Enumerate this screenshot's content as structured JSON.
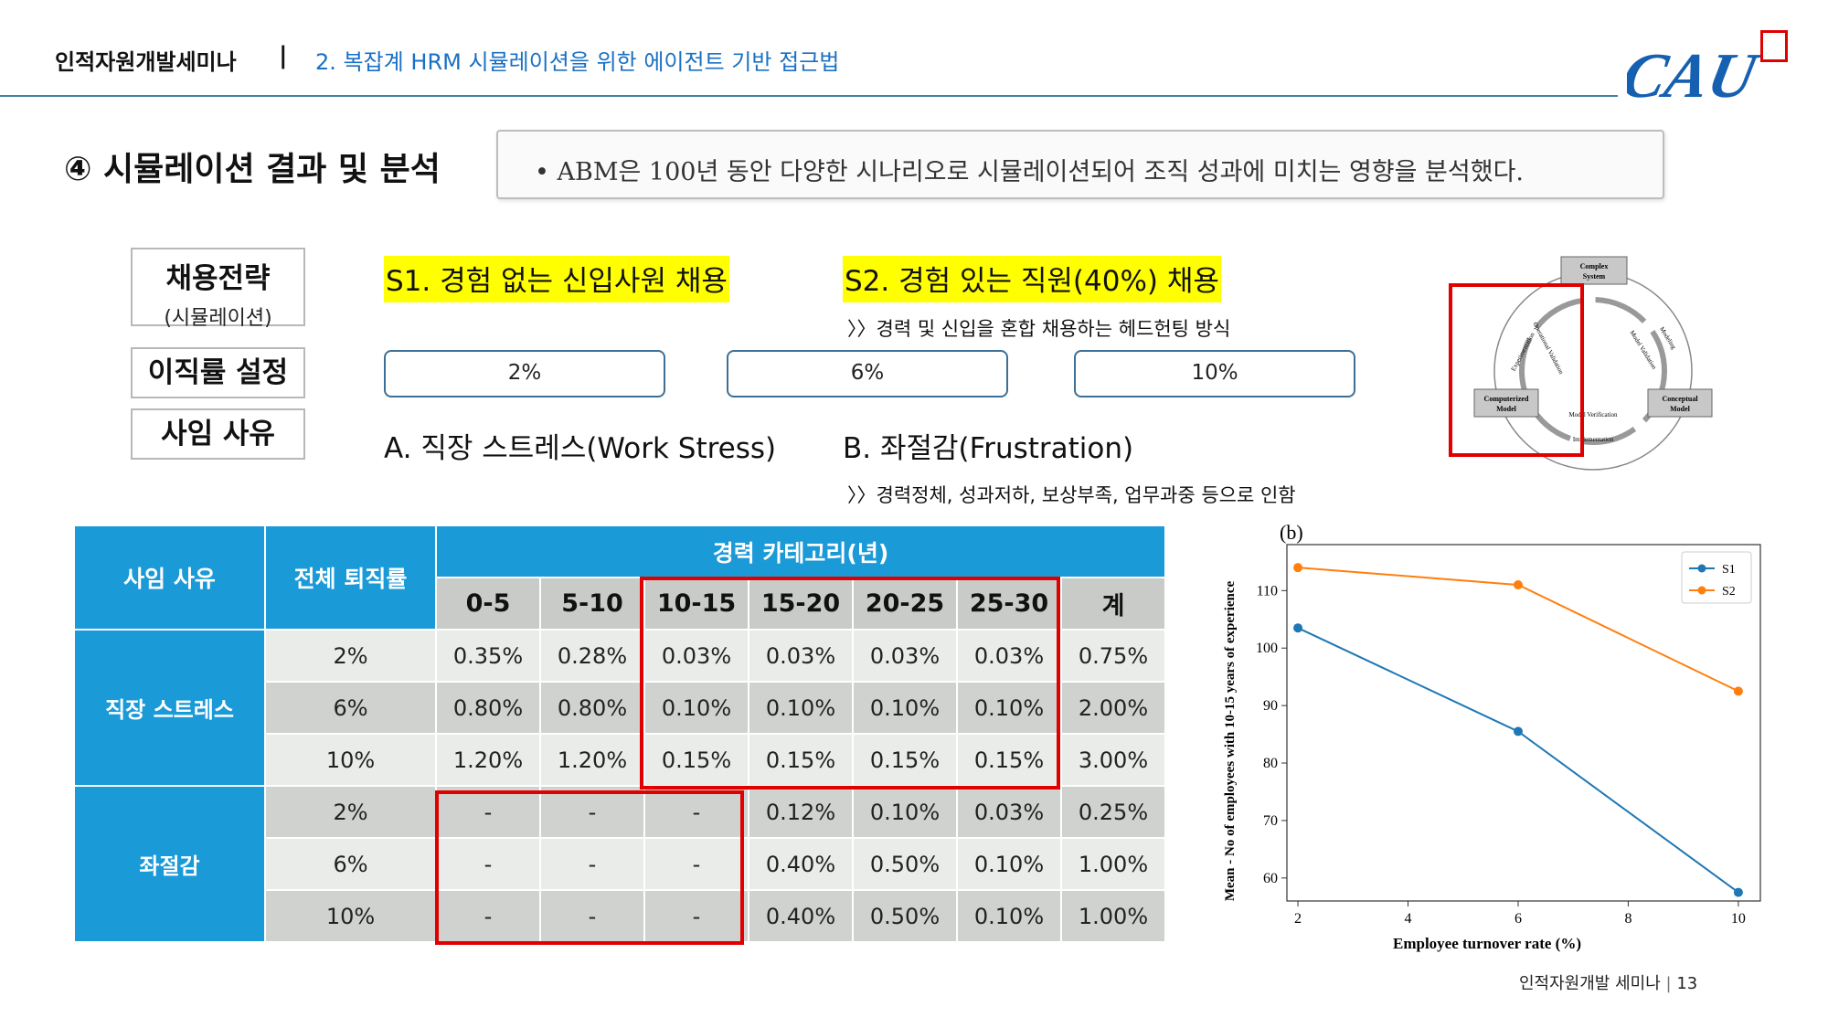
{
  "header": {
    "left": "인적자원개발세미나",
    "separator": "|",
    "right": "2. 복잡계 HRM 시뮬레이션을 위한 에이전트 기반 접근법",
    "logo_text": "CAU"
  },
  "section": {
    "title": "④   시뮬레이션 결과 및 분석",
    "summary": "•  ABM은 100년 동안 다양한 시나리오로 시뮬레이션되어 조직 성과에 미치는 영향을 분석했다."
  },
  "labels": {
    "hiring_main": "채용전략",
    "hiring_sub": "(시뮬레이션)",
    "turnover": "이직률 설정",
    "reason": "사임 사유"
  },
  "strategies": {
    "s1": "S1. 경험 없는 신입사원 채용",
    "s2": "S2. 경험 있는 직원(40%) 채용",
    "s2_note": "〉〉경력 및 신입을 혼합 채용하는 헤드헌팅 방식"
  },
  "rates": [
    "2%",
    "6%",
    "10%"
  ],
  "reasons": {
    "a": "A. 직장 스트레스(Work Stress)",
    "b": "B. 좌절감(Frustration)",
    "note": "〉〉경력정체, 성과저하, 보상부족, 업무과중 등으로 인함"
  },
  "diagram": {
    "complex": [
      "Complex",
      "System"
    ],
    "computerized": [
      "Computerized",
      "Model"
    ],
    "conceptual": [
      "Conceptual",
      "Model"
    ],
    "labels": [
      "Experimentation",
      "Operational Validation",
      "Modeling",
      "Model Validation",
      "Model Verification",
      "Implementation"
    ]
  },
  "table": {
    "h_reason": "사임 사유",
    "h_total": "전체 퇴직률",
    "h_career": "경력 카테고리(년)",
    "years": [
      "0-5",
      "5-10",
      "10-15",
      "15-20",
      "20-25",
      "25-30",
      "계"
    ],
    "groups": [
      {
        "name": "직장 스트레스",
        "rows": [
          {
            "rate": "2%",
            "cells": [
              "0.35%",
              "0.28%",
              "0.03%",
              "0.03%",
              "0.03%",
              "0.03%",
              "0.75%"
            ]
          },
          {
            "rate": "6%",
            "cells": [
              "0.80%",
              "0.80%",
              "0.10%",
              "0.10%",
              "0.10%",
              "0.10%",
              "2.00%"
            ]
          },
          {
            "rate": "10%",
            "cells": [
              "1.20%",
              "1.20%",
              "0.15%",
              "0.15%",
              "0.15%",
              "0.15%",
              "3.00%"
            ]
          }
        ]
      },
      {
        "name": "좌절감",
        "rows": [
          {
            "rate": "2%",
            "cells": [
              "-",
              "-",
              "-",
              "0.12%",
              "0.10%",
              "0.03%",
              "0.25%"
            ]
          },
          {
            "rate": "6%",
            "cells": [
              "-",
              "-",
              "-",
              "0.40%",
              "0.50%",
              "0.10%",
              "1.00%"
            ]
          },
          {
            "rate": "10%",
            "cells": [
              "-",
              "-",
              "-",
              "0.40%",
              "0.50%",
              "0.10%",
              "1.00%"
            ]
          }
        ]
      }
    ]
  },
  "chart_data": {
    "type": "line",
    "panel_label": "(b)",
    "xlabel": "Employee turnover rate (%)",
    "ylabel": "Mean - No of employees with 10-15 years of experience",
    "x": [
      2,
      6,
      10
    ],
    "xticks": [
      "2",
      "4",
      "6",
      "8",
      "10"
    ],
    "xtick_values": [
      2,
      4,
      6,
      8,
      10
    ],
    "yticks": [
      "60",
      "70",
      "80",
      "90",
      "100",
      "110"
    ],
    "ytick_values": [
      60,
      70,
      80,
      90,
      100,
      110
    ],
    "xlim": [
      1.8,
      10.4
    ],
    "ylim": [
      56,
      118
    ],
    "series": [
      {
        "name": "S1",
        "values": [
          103.5,
          85.5,
          57.5
        ],
        "color": "#1f77b4"
      },
      {
        "name": "S2",
        "values": [
          114,
          111,
          92.5
        ],
        "color": "#ff7f0e"
      }
    ],
    "legend_position": "top-right"
  },
  "footer": {
    "text": "인적자원개발 세미나",
    "sep": "|",
    "page": "13"
  }
}
